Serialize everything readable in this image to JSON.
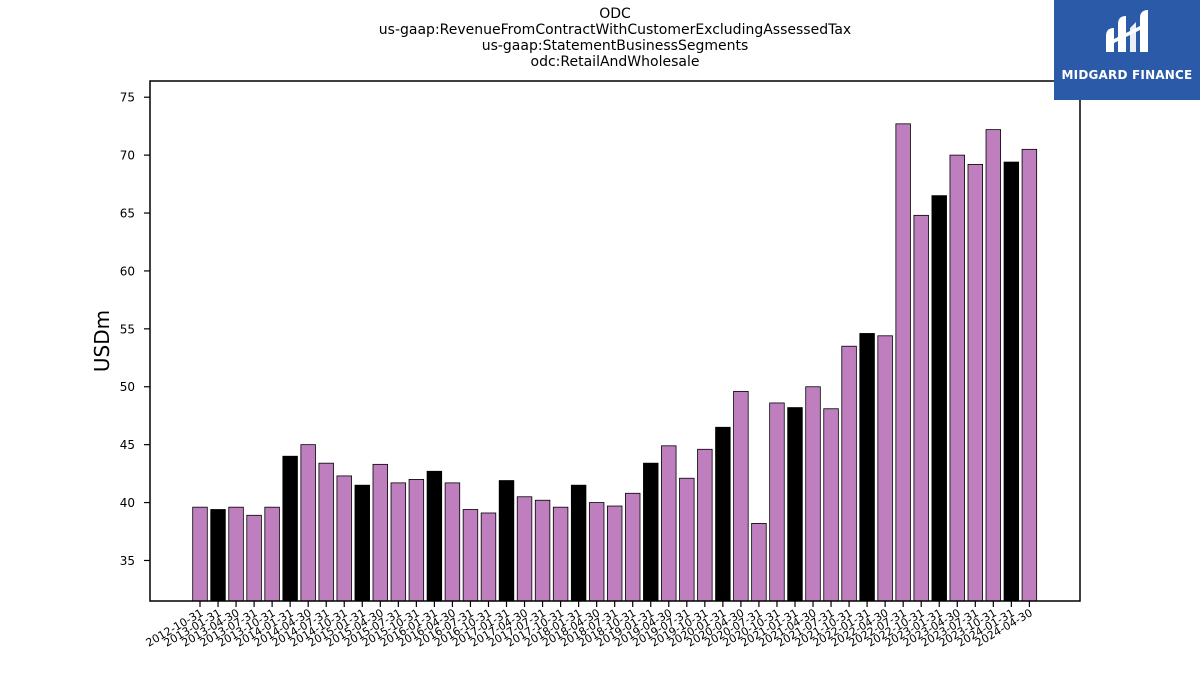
{
  "logo": {
    "text": "MIDGARD FINANCE",
    "bg_color": "#2a5aa8"
  },
  "chart_data": {
    "type": "bar",
    "title": [
      "ODC",
      "us-gaap:RevenueFromContractWithCustomerExcludingAssessedTax",
      "us-gaap:StatementBusinessSegments",
      "odc:RetailAndWholesale"
    ],
    "ylabel": "USDm",
    "xlabel": "",
    "ylim": [
      31.5,
      76.4
    ],
    "yticks": [
      35,
      40,
      45,
      50,
      55,
      60,
      65,
      70,
      75
    ],
    "grid": false,
    "colors": {
      "quarter": "#bf7fbf",
      "annual": "#000000"
    },
    "categories": [
      "2012-10-31",
      "2013-01-31",
      "2013-04-30",
      "2013-07-31",
      "2013-10-31",
      "2014-01-31",
      "2014-04-30",
      "2014-07-31",
      "2014-10-31",
      "2015-01-31",
      "2015-04-30",
      "2015-07-31",
      "2015-10-31",
      "2016-01-31",
      "2016-04-30",
      "2016-07-31",
      "2016-10-31",
      "2017-01-31",
      "2017-04-30",
      "2017-07-31",
      "2017-10-31",
      "2018-01-31",
      "2018-04-30",
      "2018-07-31",
      "2018-10-31",
      "2019-01-31",
      "2019-04-30",
      "2019-07-31",
      "2019-10-31",
      "2020-01-31",
      "2020-04-30",
      "2020-07-31",
      "2020-10-31",
      "2021-01-31",
      "2021-04-30",
      "2021-07-31",
      "2021-10-31",
      "2022-01-31",
      "2022-04-30",
      "2022-07-31",
      "2022-10-31",
      "2023-01-31",
      "2023-04-30",
      "2023-07-31",
      "2023-10-31",
      "2024-01-31",
      "2024-04-30"
    ],
    "values": [
      39.6,
      39.4,
      39.6,
      38.9,
      39.6,
      44.0,
      45.0,
      43.4,
      42.3,
      41.5,
      43.3,
      41.7,
      42.0,
      42.7,
      41.7,
      39.4,
      39.1,
      41.9,
      40.5,
      40.2,
      39.6,
      41.5,
      40.0,
      39.7,
      40.8,
      43.4,
      44.9,
      42.1,
      44.6,
      46.5,
      49.6,
      38.2,
      48.6,
      48.2,
      50.0,
      48.1,
      53.5,
      54.6,
      54.4,
      72.7,
      64.8,
      66.5,
      70.0,
      69.2,
      72.2,
      69.4,
      70.5
    ],
    "annual": [
      false,
      true,
      false,
      false,
      false,
      true,
      false,
      false,
      false,
      true,
      false,
      false,
      false,
      true,
      false,
      false,
      false,
      true,
      false,
      false,
      false,
      true,
      false,
      false,
      false,
      true,
      false,
      false,
      false,
      true,
      false,
      false,
      false,
      true,
      false,
      false,
      false,
      true,
      false,
      false,
      false,
      true,
      false,
      false,
      false,
      true,
      false
    ]
  }
}
